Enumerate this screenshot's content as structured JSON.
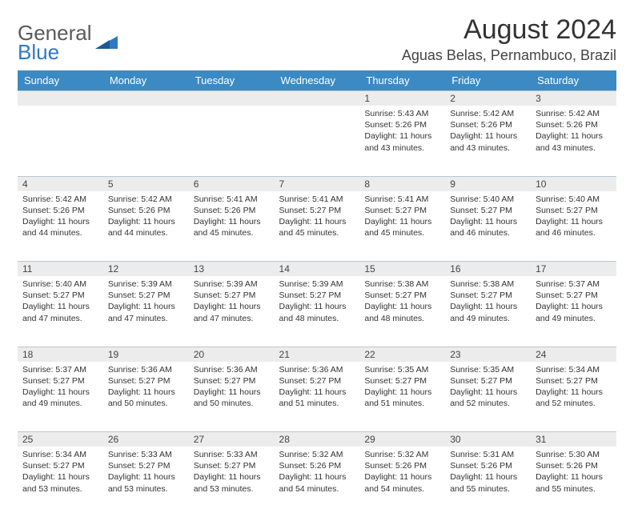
{
  "brand": {
    "word1": "General",
    "word2": "Blue"
  },
  "title": "August 2024",
  "location": "Aguas Belas, Pernambuco, Brazil",
  "colors": {
    "header_bg": "#3b8ac4",
    "header_text": "#ffffff",
    "daynum_bg": "#ececec",
    "border": "#b9c7d4",
    "brand_gray": "#5a5a5a",
    "brand_blue": "#2f78c3"
  },
  "weekdays": [
    "Sunday",
    "Monday",
    "Tuesday",
    "Wednesday",
    "Thursday",
    "Friday",
    "Saturday"
  ],
  "weeks": [
    [
      null,
      null,
      null,
      null,
      {
        "n": "1",
        "sunrise": "Sunrise: 5:43 AM",
        "sunset": "Sunset: 5:26 PM",
        "day1": "Daylight: 11 hours",
        "day2": "and 43 minutes."
      },
      {
        "n": "2",
        "sunrise": "Sunrise: 5:42 AM",
        "sunset": "Sunset: 5:26 PM",
        "day1": "Daylight: 11 hours",
        "day2": "and 43 minutes."
      },
      {
        "n": "3",
        "sunrise": "Sunrise: 5:42 AM",
        "sunset": "Sunset: 5:26 PM",
        "day1": "Daylight: 11 hours",
        "day2": "and 43 minutes."
      }
    ],
    [
      {
        "n": "4",
        "sunrise": "Sunrise: 5:42 AM",
        "sunset": "Sunset: 5:26 PM",
        "day1": "Daylight: 11 hours",
        "day2": "and 44 minutes."
      },
      {
        "n": "5",
        "sunrise": "Sunrise: 5:42 AM",
        "sunset": "Sunset: 5:26 PM",
        "day1": "Daylight: 11 hours",
        "day2": "and 44 minutes."
      },
      {
        "n": "6",
        "sunrise": "Sunrise: 5:41 AM",
        "sunset": "Sunset: 5:26 PM",
        "day1": "Daylight: 11 hours",
        "day2": "and 45 minutes."
      },
      {
        "n": "7",
        "sunrise": "Sunrise: 5:41 AM",
        "sunset": "Sunset: 5:27 PM",
        "day1": "Daylight: 11 hours",
        "day2": "and 45 minutes."
      },
      {
        "n": "8",
        "sunrise": "Sunrise: 5:41 AM",
        "sunset": "Sunset: 5:27 PM",
        "day1": "Daylight: 11 hours",
        "day2": "and 45 minutes."
      },
      {
        "n": "9",
        "sunrise": "Sunrise: 5:40 AM",
        "sunset": "Sunset: 5:27 PM",
        "day1": "Daylight: 11 hours",
        "day2": "and 46 minutes."
      },
      {
        "n": "10",
        "sunrise": "Sunrise: 5:40 AM",
        "sunset": "Sunset: 5:27 PM",
        "day1": "Daylight: 11 hours",
        "day2": "and 46 minutes."
      }
    ],
    [
      {
        "n": "11",
        "sunrise": "Sunrise: 5:40 AM",
        "sunset": "Sunset: 5:27 PM",
        "day1": "Daylight: 11 hours",
        "day2": "and 47 minutes."
      },
      {
        "n": "12",
        "sunrise": "Sunrise: 5:39 AM",
        "sunset": "Sunset: 5:27 PM",
        "day1": "Daylight: 11 hours",
        "day2": "and 47 minutes."
      },
      {
        "n": "13",
        "sunrise": "Sunrise: 5:39 AM",
        "sunset": "Sunset: 5:27 PM",
        "day1": "Daylight: 11 hours",
        "day2": "and 47 minutes."
      },
      {
        "n": "14",
        "sunrise": "Sunrise: 5:39 AM",
        "sunset": "Sunset: 5:27 PM",
        "day1": "Daylight: 11 hours",
        "day2": "and 48 minutes."
      },
      {
        "n": "15",
        "sunrise": "Sunrise: 5:38 AM",
        "sunset": "Sunset: 5:27 PM",
        "day1": "Daylight: 11 hours",
        "day2": "and 48 minutes."
      },
      {
        "n": "16",
        "sunrise": "Sunrise: 5:38 AM",
        "sunset": "Sunset: 5:27 PM",
        "day1": "Daylight: 11 hours",
        "day2": "and 49 minutes."
      },
      {
        "n": "17",
        "sunrise": "Sunrise: 5:37 AM",
        "sunset": "Sunset: 5:27 PM",
        "day1": "Daylight: 11 hours",
        "day2": "and 49 minutes."
      }
    ],
    [
      {
        "n": "18",
        "sunrise": "Sunrise: 5:37 AM",
        "sunset": "Sunset: 5:27 PM",
        "day1": "Daylight: 11 hours",
        "day2": "and 49 minutes."
      },
      {
        "n": "19",
        "sunrise": "Sunrise: 5:36 AM",
        "sunset": "Sunset: 5:27 PM",
        "day1": "Daylight: 11 hours",
        "day2": "and 50 minutes."
      },
      {
        "n": "20",
        "sunrise": "Sunrise: 5:36 AM",
        "sunset": "Sunset: 5:27 PM",
        "day1": "Daylight: 11 hours",
        "day2": "and 50 minutes."
      },
      {
        "n": "21",
        "sunrise": "Sunrise: 5:36 AM",
        "sunset": "Sunset: 5:27 PM",
        "day1": "Daylight: 11 hours",
        "day2": "and 51 minutes."
      },
      {
        "n": "22",
        "sunrise": "Sunrise: 5:35 AM",
        "sunset": "Sunset: 5:27 PM",
        "day1": "Daylight: 11 hours",
        "day2": "and 51 minutes."
      },
      {
        "n": "23",
        "sunrise": "Sunrise: 5:35 AM",
        "sunset": "Sunset: 5:27 PM",
        "day1": "Daylight: 11 hours",
        "day2": "and 52 minutes."
      },
      {
        "n": "24",
        "sunrise": "Sunrise: 5:34 AM",
        "sunset": "Sunset: 5:27 PM",
        "day1": "Daylight: 11 hours",
        "day2": "and 52 minutes."
      }
    ],
    [
      {
        "n": "25",
        "sunrise": "Sunrise: 5:34 AM",
        "sunset": "Sunset: 5:27 PM",
        "day1": "Daylight: 11 hours",
        "day2": "and 53 minutes."
      },
      {
        "n": "26",
        "sunrise": "Sunrise: 5:33 AM",
        "sunset": "Sunset: 5:27 PM",
        "day1": "Daylight: 11 hours",
        "day2": "and 53 minutes."
      },
      {
        "n": "27",
        "sunrise": "Sunrise: 5:33 AM",
        "sunset": "Sunset: 5:27 PM",
        "day1": "Daylight: 11 hours",
        "day2": "and 53 minutes."
      },
      {
        "n": "28",
        "sunrise": "Sunrise: 5:32 AM",
        "sunset": "Sunset: 5:26 PM",
        "day1": "Daylight: 11 hours",
        "day2": "and 54 minutes."
      },
      {
        "n": "29",
        "sunrise": "Sunrise: 5:32 AM",
        "sunset": "Sunset: 5:26 PM",
        "day1": "Daylight: 11 hours",
        "day2": "and 54 minutes."
      },
      {
        "n": "30",
        "sunrise": "Sunrise: 5:31 AM",
        "sunset": "Sunset: 5:26 PM",
        "day1": "Daylight: 11 hours",
        "day2": "and 55 minutes."
      },
      {
        "n": "31",
        "sunrise": "Sunrise: 5:30 AM",
        "sunset": "Sunset: 5:26 PM",
        "day1": "Daylight: 11 hours",
        "day2": "and 55 minutes."
      }
    ]
  ]
}
